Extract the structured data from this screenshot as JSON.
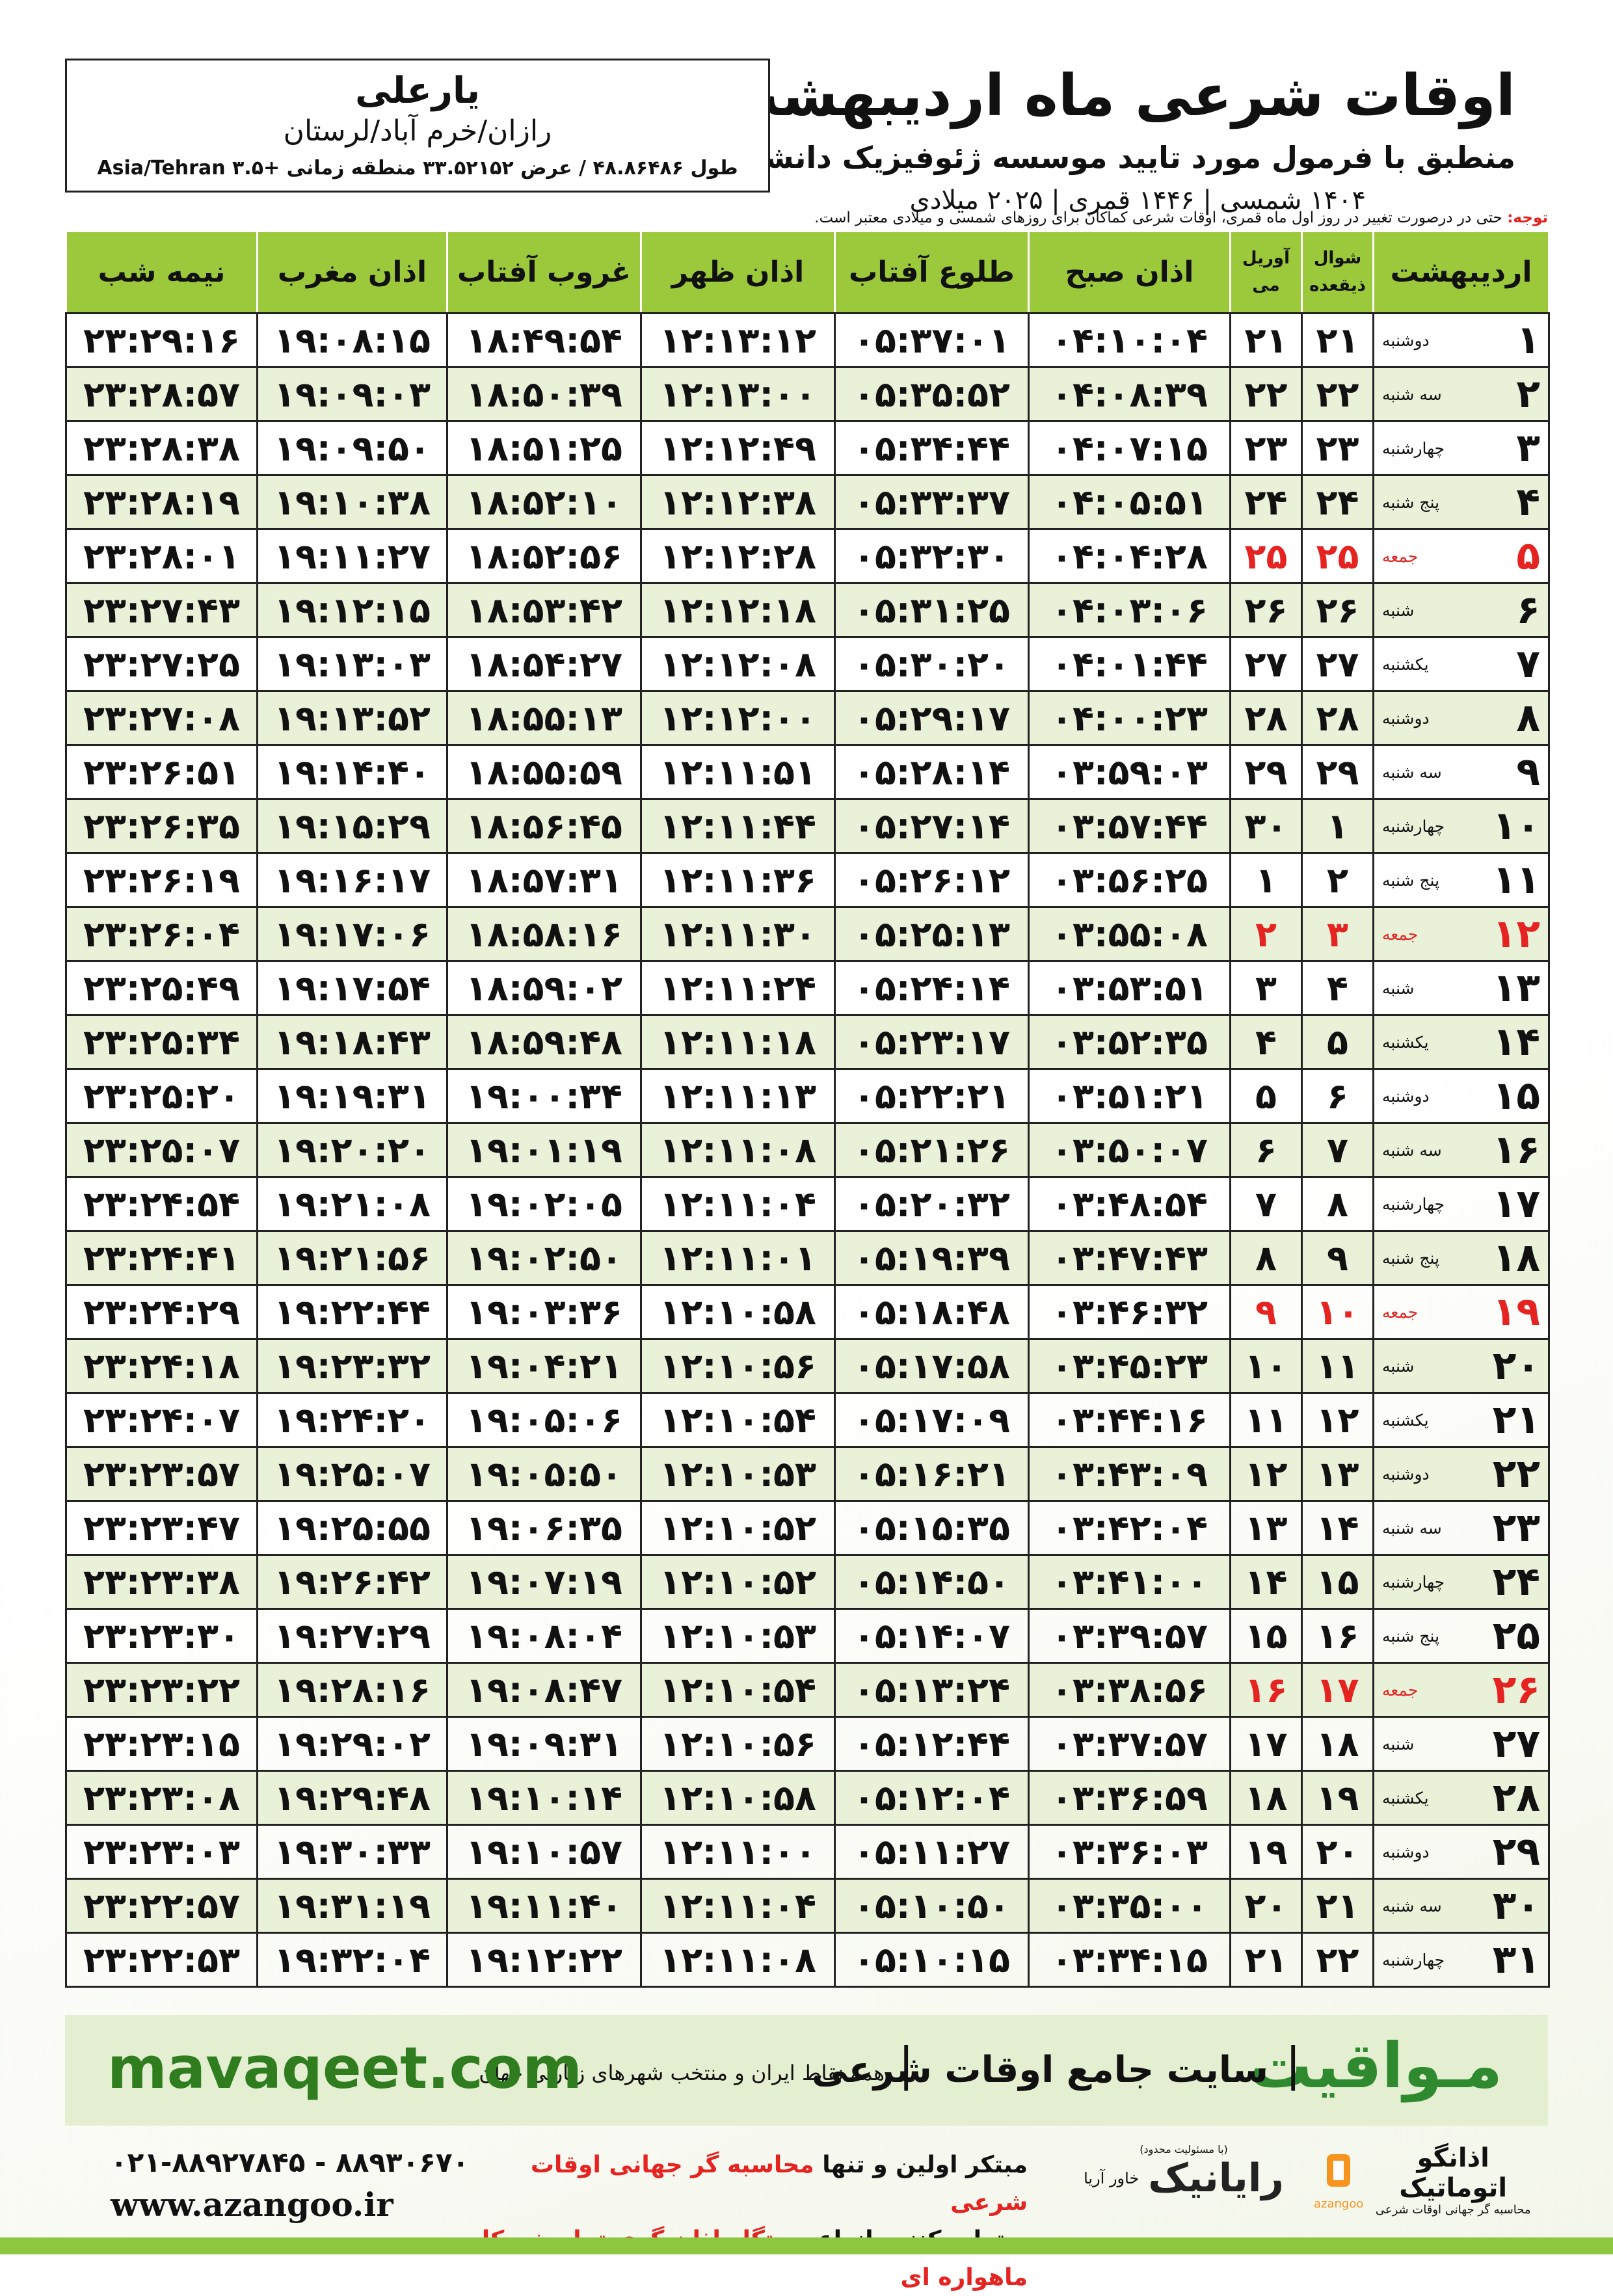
{
  "header": {
    "title": "اوقات شرعی ماه اردیبهشت",
    "subtitle": "منطبق با فرمول مورد تایید موسسه ژئوفیزیک دانشگاه تهران",
    "dates": "۱۴۰۴ شمسی | ۱۴۴۶ قمری | ۲۰۲۵ میلادی"
  },
  "location": {
    "name": "یارعلی",
    "region": "رازان/خرم آباد/لرستان",
    "coordinates": "طول ۴۸.۸۶۴۸۶ / عرض ۳۳.۵۲۱۵۲ منطقه زمانی +۳.۵ Asia/Tehran"
  },
  "note": {
    "label": "توجه:",
    "text": "حتی در درصورت تغییر در روز اول ماه قمری، اوقات شرعی کماکان برای روزهای شمسی و میلادی معتبر است."
  },
  "table": {
    "columns": [
      [
        "اردیبهشت"
      ],
      [
        "شوال",
        "ذیقعده"
      ],
      [
        "آوریل",
        "می"
      ],
      [
        "اذان صبح"
      ],
      [
        "طلوع آفتاب"
      ],
      [
        "اذان ظهر"
      ],
      [
        "غروب آفتاب"
      ],
      [
        "اذان مغرب"
      ],
      [
        "نیمه شب"
      ]
    ],
    "rows": [
      {
        "cells": [
          "۱",
          "دوشنبه",
          "۲۱",
          "۲۱",
          "۰۴:۱۰:۰۴",
          "۰۵:۳۷:۰۱",
          "۱۲:۱۳:۱۲",
          "۱۸:۴۹:۵۴",
          "۱۹:۰۸:۱۵",
          "۲۳:۲۹:۱۶"
        ]
      },
      {
        "cells": [
          "۲",
          "سه شنبه",
          "۲۲",
          "۲۲",
          "۰۴:۰۸:۳۹",
          "۰۵:۳۵:۵۲",
          "۱۲:۱۳:۰۰",
          "۱۸:۵۰:۳۹",
          "۱۹:۰۹:۰۳",
          "۲۳:۲۸:۵۷"
        ]
      },
      {
        "cells": [
          "۳",
          "چهارشنبه",
          "۲۳",
          "۲۳",
          "۰۴:۰۷:۱۵",
          "۰۵:۳۴:۴۴",
          "۱۲:۱۲:۴۹",
          "۱۸:۵۱:۲۵",
          "۱۹:۰۹:۵۰",
          "۲۳:۲۸:۳۸"
        ]
      },
      {
        "cells": [
          "۴",
          "پنج شنبه",
          "۲۴",
          "۲۴",
          "۰۴:۰۵:۵۱",
          "۰۵:۳۳:۳۷",
          "۱۲:۱۲:۳۸",
          "۱۸:۵۲:۱۰",
          "۱۹:۱۰:۳۸",
          "۲۳:۲۸:۱۹"
        ]
      },
      {
        "cells": [
          "۵",
          "جمعه",
          "۲۵",
          "۲۵",
          "۰۴:۰۴:۲۸",
          "۰۵:۳۲:۳۰",
          "۱۲:۱۲:۲۸",
          "۱۸:۵۲:۵۶",
          "۱۹:۱۱:۲۷",
          "۲۳:۲۸:۰۱"
        ],
        "color": "#e52421"
      },
      {
        "cells": [
          "۶",
          "شنبه",
          "۲۶",
          "۲۶",
          "۰۴:۰۳:۰۶",
          "۰۵:۳۱:۲۵",
          "۱۲:۱۲:۱۸",
          "۱۸:۵۳:۴۲",
          "۱۹:۱۲:۱۵",
          "۲۳:۲۷:۴۳"
        ]
      },
      {
        "cells": [
          "۷",
          "یکشنبه",
          "۲۷",
          "۲۷",
          "۰۴:۰۱:۴۴",
          "۰۵:۳۰:۲۰",
          "۱۲:۱۲:۰۸",
          "۱۸:۵۴:۲۷",
          "۱۹:۱۳:۰۳",
          "۲۳:۲۷:۲۵"
        ]
      },
      {
        "cells": [
          "۸",
          "دوشنبه",
          "۲۸",
          "۲۸",
          "۰۴:۰۰:۲۳",
          "۰۵:۲۹:۱۷",
          "۱۲:۱۲:۰۰",
          "۱۸:۵۵:۱۳",
          "۱۹:۱۳:۵۲",
          "۲۳:۲۷:۰۸"
        ]
      },
      {
        "cells": [
          "۹",
          "سه شنبه",
          "۲۹",
          "۲۹",
          "۰۳:۵۹:۰۳",
          "۰۵:۲۸:۱۴",
          "۱۲:۱۱:۵۱",
          "۱۸:۵۵:۵۹",
          "۱۹:۱۴:۴۰",
          "۲۳:۲۶:۵۱"
        ]
      },
      {
        "cells": [
          "۱۰",
          "چهارشنبه",
          "۱",
          "۳۰",
          "۰۳:۵۷:۴۴",
          "۰۵:۲۷:۱۴",
          "۱۲:۱۱:۴۴",
          "۱۸:۵۶:۴۵",
          "۱۹:۱۵:۲۹",
          "۲۳:۲۶:۳۵"
        ]
      },
      {
        "cells": [
          "۱۱",
          "پنج شنبه",
          "۲",
          "۱",
          "۰۳:۵۶:۲۵",
          "۰۵:۲۶:۱۲",
          "۱۲:۱۱:۳۶",
          "۱۸:۵۷:۳۱",
          "۱۹:۱۶:۱۷",
          "۲۳:۲۶:۱۹"
        ]
      },
      {
        "cells": [
          "۱۲",
          "جمعه",
          "۳",
          "۲",
          "۰۳:۵۵:۰۸",
          "۰۵:۲۵:۱۳",
          "۱۲:۱۱:۳۰",
          "۱۸:۵۸:۱۶",
          "۱۹:۱۷:۰۶",
          "۲۳:۲۶:۰۴"
        ],
        "color": "#e52421"
      },
      {
        "cells": [
          "۱۳",
          "شنبه",
          "۴",
          "۳",
          "۰۳:۵۳:۵۱",
          "۰۵:۲۴:۱۴",
          "۱۲:۱۱:۲۴",
          "۱۸:۵۹:۰۲",
          "۱۹:۱۷:۵۴",
          "۲۳:۲۵:۴۹"
        ]
      },
      {
        "cells": [
          "۱۴",
          "یکشنبه",
          "۵",
          "۴",
          "۰۳:۵۲:۳۵",
          "۰۵:۲۳:۱۷",
          "۱۲:۱۱:۱۸",
          "۱۸:۵۹:۴۸",
          "۱۹:۱۸:۴۳",
          "۲۳:۲۵:۳۴"
        ]
      },
      {
        "cells": [
          "۱۵",
          "دوشنبه",
          "۶",
          "۵",
          "۰۳:۵۱:۲۱",
          "۰۵:۲۲:۲۱",
          "۱۲:۱۱:۱۳",
          "۱۹:۰۰:۳۴",
          "۱۹:۱۹:۳۱",
          "۲۳:۲۵:۲۰"
        ]
      },
      {
        "cells": [
          "۱۶",
          "سه شنبه",
          "۷",
          "۶",
          "۰۳:۵۰:۰۷",
          "۰۵:۲۱:۲۶",
          "۱۲:۱۱:۰۸",
          "۱۹:۰۱:۱۹",
          "۱۹:۲۰:۲۰",
          "۲۳:۲۵:۰۷"
        ]
      },
      {
        "cells": [
          "۱۷",
          "چهارشنبه",
          "۸",
          "۷",
          "۰۳:۴۸:۵۴",
          "۰۵:۲۰:۳۲",
          "۱۲:۱۱:۰۴",
          "۱۹:۰۲:۰۵",
          "۱۹:۲۱:۰۸",
          "۲۳:۲۴:۵۴"
        ]
      },
      {
        "cells": [
          "۱۸",
          "پنج شنبه",
          "۹",
          "۸",
          "۰۳:۴۷:۴۳",
          "۰۵:۱۹:۳۹",
          "۱۲:۱۱:۰۱",
          "۱۹:۰۲:۵۰",
          "۱۹:۲۱:۵۶",
          "۲۳:۲۴:۴۱"
        ]
      },
      {
        "cells": [
          "۱۹",
          "جمعه",
          "۱۰",
          "۹",
          "۰۳:۴۶:۳۲",
          "۰۵:۱۸:۴۸",
          "۱۲:۱۰:۵۸",
          "۱۹:۰۳:۳۶",
          "۱۹:۲۲:۴۴",
          "۲۳:۲۴:۲۹"
        ],
        "color": "#e52421"
      },
      {
        "cells": [
          "۲۰",
          "شنبه",
          "۱۱",
          "۱۰",
          "۰۳:۴۵:۲۳",
          "۰۵:۱۷:۵۸",
          "۱۲:۱۰:۵۶",
          "۱۹:۰۴:۲۱",
          "۱۹:۲۳:۳۲",
          "۲۳:۲۴:۱۸"
        ]
      },
      {
        "cells": [
          "۲۱",
          "یکشنبه",
          "۱۲",
          "۱۱",
          "۰۳:۴۴:۱۶",
          "۰۵:۱۷:۰۹",
          "۱۲:۱۰:۵۴",
          "۱۹:۰۵:۰۶",
          "۱۹:۲۴:۲۰",
          "۲۳:۲۴:۰۷"
        ]
      },
      {
        "cells": [
          "۲۲",
          "دوشنبه",
          "۱۳",
          "۱۲",
          "۰۳:۴۳:۰۹",
          "۰۵:۱۶:۲۱",
          "۱۲:۱۰:۵۳",
          "۱۹:۰۵:۵۰",
          "۱۹:۲۵:۰۷",
          "۲۳:۲۳:۵۷"
        ]
      },
      {
        "cells": [
          "۲۳",
          "سه شنبه",
          "۱۴",
          "۱۳",
          "۰۳:۴۲:۰۴",
          "۰۵:۱۵:۳۵",
          "۱۲:۱۰:۵۲",
          "۱۹:۰۶:۳۵",
          "۱۹:۲۵:۵۵",
          "۲۳:۲۳:۴۷"
        ]
      },
      {
        "cells": [
          "۲۴",
          "چهارشنبه",
          "۱۵",
          "۱۴",
          "۰۳:۴۱:۰۰",
          "۰۵:۱۴:۵۰",
          "۱۲:۱۰:۵۲",
          "۱۹:۰۷:۱۹",
          "۱۹:۲۶:۴۲",
          "۲۳:۲۳:۳۸"
        ]
      },
      {
        "cells": [
          "۲۵",
          "پنج شنبه",
          "۱۶",
          "۱۵",
          "۰۳:۳۹:۵۷",
          "۰۵:۱۴:۰۷",
          "۱۲:۱۰:۵۳",
          "۱۹:۰۸:۰۴",
          "۱۹:۲۷:۲۹",
          "۲۳:۲۳:۳۰"
        ]
      },
      {
        "cells": [
          "۲۶",
          "جمعه",
          "۱۷",
          "۱۶",
          "۰۳:۳۸:۵۶",
          "۰۵:۱۳:۲۴",
          "۱۲:۱۰:۵۴",
          "۱۹:۰۸:۴۷",
          "۱۹:۲۸:۱۶",
          "۲۳:۲۳:۲۲"
        ],
        "color": "#e52421"
      },
      {
        "cells": [
          "۲۷",
          "شنبه",
          "۱۸",
          "۱۷",
          "۰۳:۳۷:۵۷",
          "۰۵:۱۲:۴۴",
          "۱۲:۱۰:۵۶",
          "۱۹:۰۹:۳۱",
          "۱۹:۲۹:۰۲",
          "۲۳:۲۳:۱۵"
        ]
      },
      {
        "cells": [
          "۲۸",
          "یکشنبه",
          "۱۹",
          "۱۸",
          "۰۳:۳۶:۵۹",
          "۰۵:۱۲:۰۴",
          "۱۲:۱۰:۵۸",
          "۱۹:۱۰:۱۴",
          "۱۹:۲۹:۴۸",
          "۲۳:۲۳:۰۸"
        ]
      },
      {
        "cells": [
          "۲۹",
          "دوشنبه",
          "۲۰",
          "۱۹",
          "۰۳:۳۶:۰۳",
          "۰۵:۱۱:۲۷",
          "۱۲:۱۱:۰۰",
          "۱۹:۱۰:۵۷",
          "۱۹:۳۰:۳۳",
          "۲۳:۲۳:۰۳"
        ]
      },
      {
        "cells": [
          "۳۰",
          "سه شنبه",
          "۲۱",
          "۲۰",
          "۰۳:۳۵:۰۰",
          "۰۵:۱۰:۵۰",
          "۱۲:۱۱:۰۴",
          "۱۹:۱۱:۴۰",
          "۱۹:۳۱:۱۹",
          "۲۳:۲۲:۵۷"
        ]
      },
      {
        "cells": [
          "۳۱",
          "چهارشنبه",
          "۲۲",
          "۲۱",
          "۰۳:۳۴:۱۵",
          "۰۵:۱۰:۱۵",
          "۱۲:۱۱:۰۸",
          "۱۹:۱۲:۲۲",
          "۱۹:۳۲:۰۴",
          "۲۳:۲۲:۵۳"
        ]
      }
    ]
  },
  "banner": {
    "brand": "مـواقیت",
    "tagline": "سایت جامع اوقات شرعی",
    "coverage": "همه نقاط ایران و منتخب شهرهای زیارتی جهان",
    "url": "mavaqeet.com"
  },
  "footer": {
    "phone": "۰۲۱-۸۸۹۲۷۸۴۵ - ۸۸۹۳۰۶۷۰",
    "website": "www.azangoo.ir",
    "line1": "مبتکر اولین و تنها",
    "line1_highlight": "محاسبه گر جهانی اوقات شرعی",
    "line2": "و تولید کننده انواع",
    "line2_highlight": "دستگاه اذان گوی تمام خودکار ماهواره ای",
    "logo1": "رایانیک",
    "logo1_sub": "خاور آریا",
    "logo1_note": "(با مسئولیت محدود)",
    "logo2": "اذانگو اتوماتیک",
    "logo2_sub": "محاسبه گر جهانی اوقات شرعی",
    "logo2_latin": "azangoo"
  }
}
